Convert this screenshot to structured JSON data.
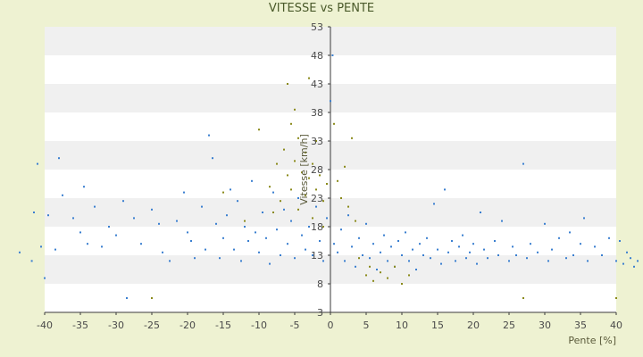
{
  "chart_data": {
    "type": "scatter",
    "title": "VITESSE vs PENTE",
    "xlabel": "Pente [%]",
    "ylabel": "Vitesse [km/h]",
    "xlim": [
      -40,
      40
    ],
    "ylim": [
      3,
      53
    ],
    "x_ticks": [
      -40,
      -35,
      -30,
      -25,
      -20,
      -15,
      -10,
      -5,
      0,
      5,
      10,
      15,
      20,
      25,
      30,
      35,
      40
    ],
    "y_ticks": [
      3,
      8,
      13,
      18,
      23,
      28,
      33,
      38,
      43,
      48,
      53
    ],
    "grid": "horizontal bands",
    "colors": {
      "background": "#eef2d2",
      "plot_band_light": "#ffffff",
      "plot_band_dark": "#f0f0f0",
      "series_blue": "#3a7fd0",
      "series_olive": "#8a8a1a"
    },
    "series": [
      {
        "color": "#3a7fd0",
        "points": [
          [
            -43.5,
            13.5
          ],
          [
            -41.8,
            12.0
          ],
          [
            -41.5,
            20.5
          ],
          [
            -41.0,
            29.0
          ],
          [
            -40.5,
            14.5
          ],
          [
            -40.0,
            9.0
          ],
          [
            -39.5,
            20.0
          ],
          [
            -38.5,
            14.0
          ],
          [
            -38.0,
            30.0
          ],
          [
            -37.5,
            23.5
          ],
          [
            -36.0,
            19.5
          ],
          [
            -35.0,
            17.0
          ],
          [
            -34.5,
            25.0
          ],
          [
            -34.0,
            15.0
          ],
          [
            -33.0,
            21.5
          ],
          [
            -32.0,
            14.5
          ],
          [
            -31.0,
            18.0
          ],
          [
            -30.0,
            16.5
          ],
          [
            -29.0,
            22.5
          ],
          [
            -28.5,
            5.5
          ],
          [
            -27.5,
            19.5
          ],
          [
            -26.5,
            15.0
          ],
          [
            -25.0,
            21.0
          ],
          [
            -24.0,
            18.5
          ],
          [
            -23.5,
            13.5
          ],
          [
            -22.5,
            12.0
          ],
          [
            -21.5,
            19.0
          ],
          [
            -20.5,
            24.0
          ],
          [
            -20.0,
            17.0
          ],
          [
            -19.5,
            15.5
          ],
          [
            -19.0,
            12.5
          ],
          [
            -18.0,
            21.5
          ],
          [
            -17.5,
            14.0
          ],
          [
            -17.0,
            34.0
          ],
          [
            -16.5,
            30.0
          ],
          [
            -16.0,
            18.5
          ],
          [
            -15.5,
            12.5
          ],
          [
            -15.0,
            16.0
          ],
          [
            -14.5,
            20.0
          ],
          [
            -14.0,
            24.5
          ],
          [
            -13.5,
            14.0
          ],
          [
            -13.0,
            22.5
          ],
          [
            -12.5,
            12.0
          ],
          [
            -12.0,
            18.0
          ],
          [
            -11.5,
            15.5
          ],
          [
            -11.0,
            26.0
          ],
          [
            -10.5,
            17.0
          ],
          [
            -10.0,
            13.5
          ],
          [
            -9.5,
            20.5
          ],
          [
            -9.0,
            16.0
          ],
          [
            -8.5,
            11.5
          ],
          [
            -8.0,
            24.0
          ],
          [
            -7.5,
            17.5
          ],
          [
            -7.0,
            13.0
          ],
          [
            -6.5,
            21.0
          ],
          [
            -6.0,
            15.0
          ],
          [
            -5.5,
            19.0
          ],
          [
            -5.0,
            12.5
          ],
          [
            -4.5,
            23.0
          ],
          [
            -4.0,
            16.5
          ],
          [
            -3.5,
            14.0
          ],
          [
            -3.0,
            18.0
          ],
          [
            -2.5,
            13.0
          ],
          [
            -2.0,
            21.5
          ],
          [
            -1.5,
            15.5
          ],
          [
            -1.0,
            12.0
          ],
          [
            -0.5,
            19.5
          ],
          [
            0.0,
            40.0
          ],
          [
            0.3,
            48.0
          ],
          [
            0.5,
            15.0
          ],
          [
            1.0,
            13.5
          ],
          [
            1.5,
            17.5
          ],
          [
            2.0,
            12.0
          ],
          [
            2.5,
            20.0
          ],
          [
            3.0,
            14.5
          ],
          [
            3.5,
            11.0
          ],
          [
            4.0,
            16.0
          ],
          [
            4.5,
            13.0
          ],
          [
            5.0,
            18.5
          ],
          [
            5.5,
            12.5
          ],
          [
            6.0,
            15.0
          ],
          [
            6.5,
            10.5
          ],
          [
            7.0,
            13.5
          ],
          [
            7.5,
            16.5
          ],
          [
            8.0,
            12.0
          ],
          [
            8.5,
            14.5
          ],
          [
            9.0,
            11.0
          ],
          [
            9.5,
            15.5
          ],
          [
            10.0,
            13.0
          ],
          [
            10.5,
            17.0
          ],
          [
            11.0,
            12.0
          ],
          [
            11.5,
            14.0
          ],
          [
            12.0,
            10.5
          ],
          [
            12.5,
            15.0
          ],
          [
            13.0,
            13.0
          ],
          [
            13.5,
            16.0
          ],
          [
            14.0,
            12.5
          ],
          [
            14.5,
            22.0
          ],
          [
            15.0,
            14.0
          ],
          [
            15.5,
            11.5
          ],
          [
            16.0,
            24.5
          ],
          [
            16.5,
            13.5
          ],
          [
            17.0,
            15.5
          ],
          [
            17.5,
            12.0
          ],
          [
            18.0,
            14.5
          ],
          [
            18.5,
            16.5
          ],
          [
            19.0,
            12.5
          ],
          [
            19.5,
            13.5
          ],
          [
            20.0,
            15.0
          ],
          [
            20.5,
            11.5
          ],
          [
            21.0,
            20.5
          ],
          [
            21.5,
            14.0
          ],
          [
            22.0,
            12.5
          ],
          [
            23.0,
            15.5
          ],
          [
            23.5,
            13.0
          ],
          [
            24.0,
            19.0
          ],
          [
            25.0,
            12.0
          ],
          [
            25.5,
            14.5
          ],
          [
            26.0,
            13.0
          ],
          [
            27.0,
            29.0
          ],
          [
            27.5,
            12.5
          ],
          [
            28.0,
            15.0
          ],
          [
            29.0,
            13.5
          ],
          [
            30.0,
            18.5
          ],
          [
            30.5,
            12.0
          ],
          [
            31.0,
            14.0
          ],
          [
            32.0,
            16.0
          ],
          [
            33.0,
            12.5
          ],
          [
            33.5,
            17.0
          ],
          [
            34.0,
            13.0
          ],
          [
            35.0,
            15.0
          ],
          [
            35.5,
            19.5
          ],
          [
            36.0,
            12.0
          ],
          [
            37.0,
            14.5
          ],
          [
            38.0,
            13.0
          ],
          [
            39.0,
            16.0
          ],
          [
            40.0,
            12.0
          ],
          [
            40.5,
            15.5
          ],
          [
            41.0,
            11.5
          ],
          [
            41.5,
            13.5
          ],
          [
            42.0,
            12.5
          ],
          [
            42.5,
            11.0
          ],
          [
            43.0,
            12.0
          ]
        ]
      },
      {
        "color": "#8a8a1a",
        "points": [
          [
            -25.0,
            5.5
          ],
          [
            -15.0,
            24.0
          ],
          [
            -12.0,
            19.0
          ],
          [
            -10.0,
            35.0
          ],
          [
            -8.5,
            25.0
          ],
          [
            -8.0,
            20.5
          ],
          [
            -7.5,
            29.0
          ],
          [
            -7.0,
            22.5
          ],
          [
            -6.5,
            31.5
          ],
          [
            -6.0,
            27.0
          ],
          [
            -6.0,
            43.0
          ],
          [
            -5.5,
            36.0
          ],
          [
            -5.5,
            24.5
          ],
          [
            -5.0,
            38.5
          ],
          [
            -5.0,
            29.5
          ],
          [
            -4.5,
            33.5
          ],
          [
            -4.5,
            21.0
          ],
          [
            -4.0,
            27.5
          ],
          [
            -3.5,
            31.0
          ],
          [
            -3.5,
            23.5
          ],
          [
            -3.0,
            44.0
          ],
          [
            -3.0,
            26.5
          ],
          [
            -2.5,
            29.0
          ],
          [
            -2.5,
            19.5
          ],
          [
            -2.0,
            24.5
          ],
          [
            -2.0,
            33.0
          ],
          [
            -1.5,
            27.0
          ],
          [
            -1.0,
            22.5
          ],
          [
            -1.0,
            18.0
          ],
          [
            -0.5,
            25.5
          ],
          [
            0.5,
            36.0
          ],
          [
            1.0,
            26.0
          ],
          [
            1.5,
            23.0
          ],
          [
            2.0,
            28.5
          ],
          [
            2.5,
            21.5
          ],
          [
            3.0,
            33.5
          ],
          [
            3.5,
            19.0
          ],
          [
            4.0,
            12.5
          ],
          [
            5.0,
            9.5
          ],
          [
            5.5,
            11.0
          ],
          [
            6.0,
            8.5
          ],
          [
            7.0,
            10.0
          ],
          [
            8.0,
            9.0
          ],
          [
            9.0,
            11.0
          ],
          [
            10.0,
            8.0
          ],
          [
            11.0,
            9.5
          ],
          [
            27.0,
            5.5
          ],
          [
            40.0,
            5.5
          ]
        ]
      }
    ]
  }
}
